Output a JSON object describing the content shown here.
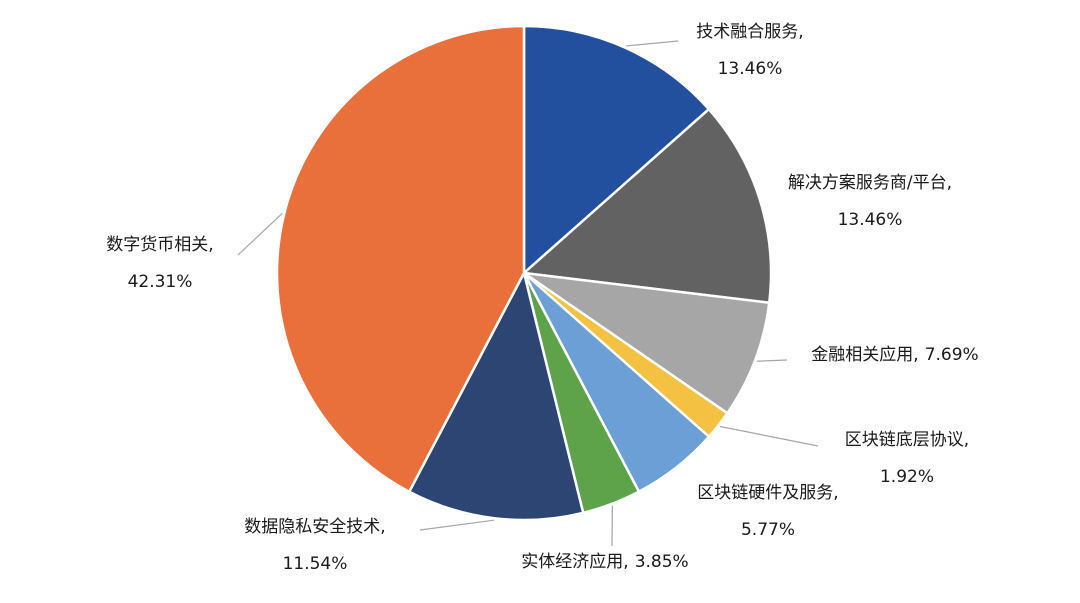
{
  "chart_data": {
    "type": "pie",
    "categories": [
      "技术融合服务,",
      "解决方案服务商/平台,",
      "金融相关应用,",
      "区块链底层协议,",
      "区块链硬件及服务,",
      "实体经济应用,",
      "数据隐私安全技术,",
      "数字货币相关,"
    ],
    "values": [
      13.46,
      13.46,
      7.69,
      1.92,
      5.77,
      3.85,
      11.54,
      42.31
    ],
    "value_labels": [
      "13.46%",
      "13.46%",
      "7.69%",
      "1.92%",
      "5.77%",
      "3.85%",
      "11.54%",
      "42.31%"
    ],
    "colors": [
      "#22509f",
      "#626262",
      "#a6a6a6",
      "#f4c142",
      "#6b9fd5",
      "#5ea24a",
      "#2d4573",
      "#e9703a"
    ]
  }
}
